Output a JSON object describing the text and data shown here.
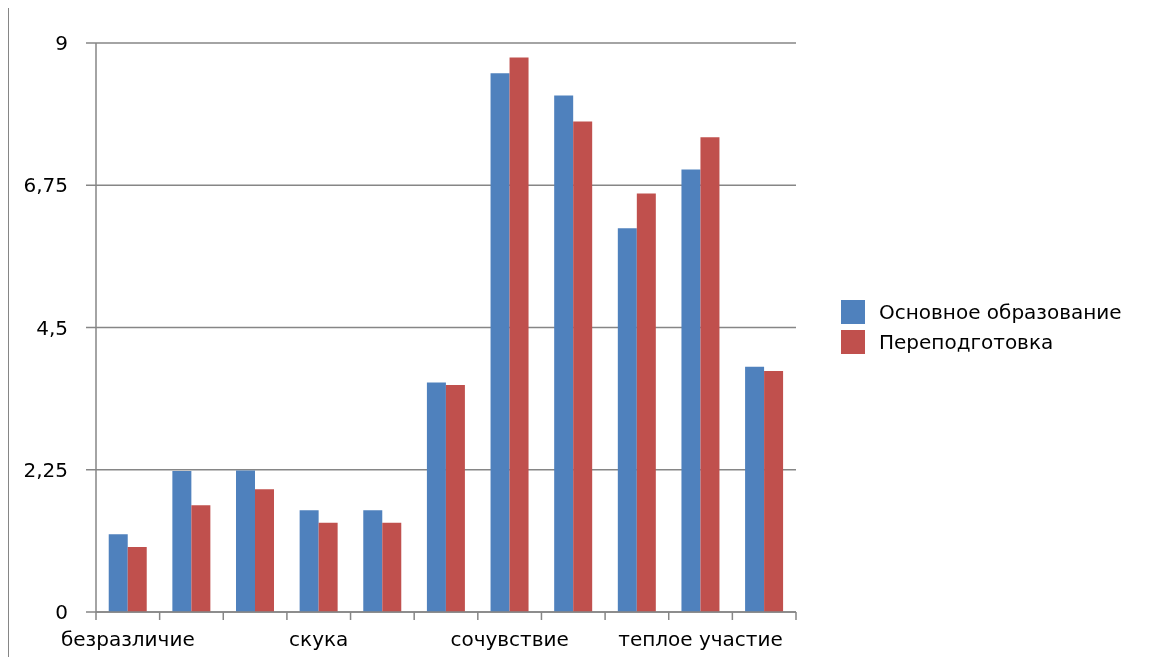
{
  "chart_data": {
    "type": "bar",
    "categories": [
      "безразличие",
      null,
      null,
      "скука",
      null,
      null,
      "сочувствие",
      null,
      null,
      "теплое участие",
      null
    ],
    "series": [
      {
        "name": "Основное образование",
        "color": "#4f81bd",
        "values": [
          1.23,
          2.23,
          2.24,
          1.61,
          1.61,
          3.63,
          8.52,
          8.17,
          6.07,
          7.0,
          3.88
        ]
      },
      {
        "name": "Переподготовка",
        "color": "#c0504d",
        "values": [
          1.03,
          1.69,
          1.94,
          1.41,
          1.41,
          3.59,
          8.77,
          7.76,
          6.62,
          7.51,
          3.81
        ]
      }
    ],
    "ylim": [
      0,
      9
    ],
    "yticks": [
      0,
      {
        "value": 2.25,
        "label": "2,25"
      },
      {
        "value": 4.5,
        "label": "4,5"
      },
      {
        "value": 6.75,
        "label": "6,75"
      },
      9
    ],
    "grid": "y",
    "legend": "right"
  }
}
